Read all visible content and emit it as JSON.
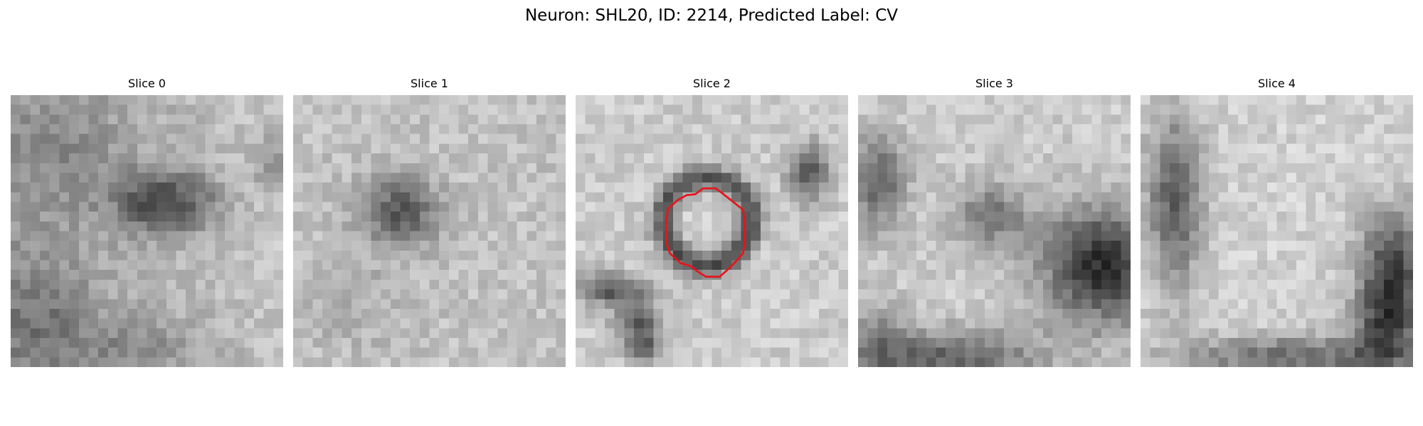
{
  "figure": {
    "title": "Neuron: SHL20, ID: 2214, Predicted Label: CV"
  },
  "slices": [
    {
      "label": "Slice 0"
    },
    {
      "label": "Slice 1"
    },
    {
      "label": "Slice 2",
      "has_contour": true,
      "contour_color": "#e8141c"
    },
    {
      "label": "Slice 3"
    },
    {
      "label": "Slice 4"
    }
  ]
}
